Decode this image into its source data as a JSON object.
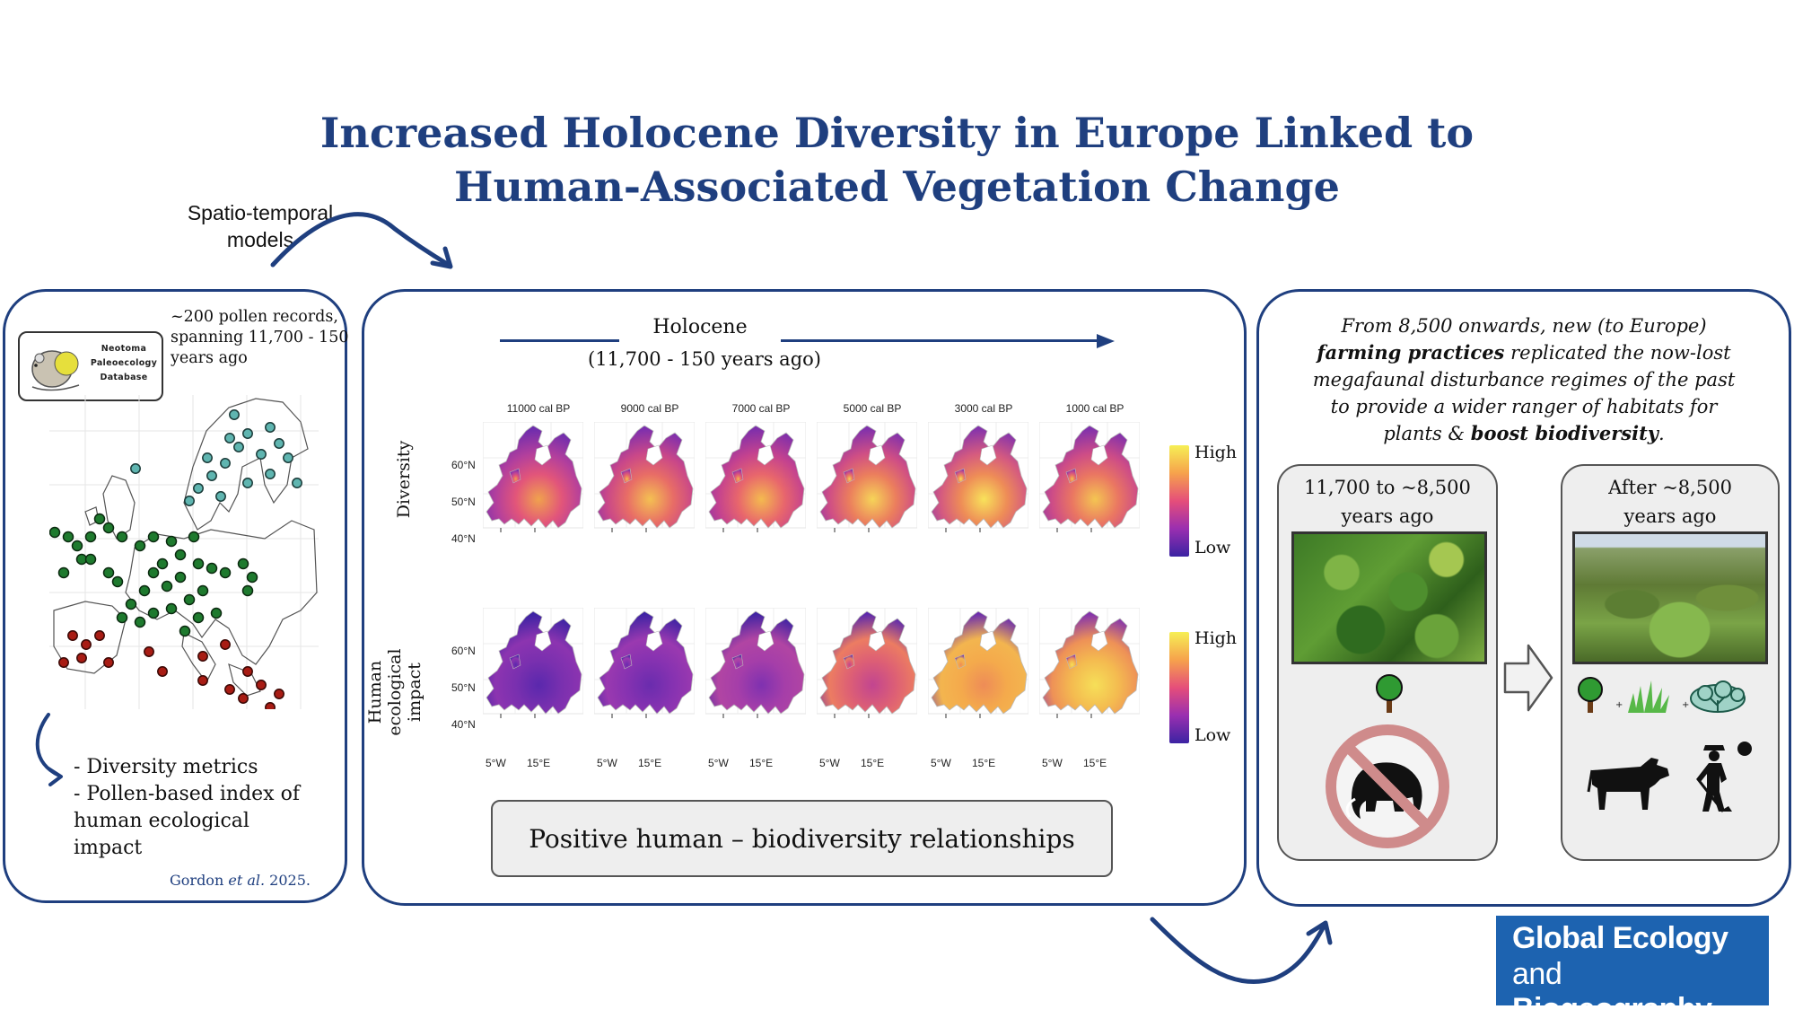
{
  "title_line1": "Increased Holocene Diversity in Europe Linked to",
  "title_line2": "Human-Associated Vegetation Change",
  "arrow_label": "Spatio-temporal\nmodels",
  "left_panel": {
    "records_text": "~200 pollen  records,\nspanning 11,700 - 150\nyears ago",
    "neotoma_line1": "Neotoma",
    "neotoma_line2": "Paleoecology",
    "neotoma_line3": "Database",
    "bullet1": "- Diversity metrics",
    "bullet2": "- Pollen-based index of\nhuman ecological\nimpact",
    "citation_author": "Gordon",
    "citation_etal": "et al.",
    "citation_year": "2025."
  },
  "middle_panel": {
    "holocene_label": "Holocene",
    "holocene_range": "(11,700 - 150 years ago)",
    "time_slices": [
      "11000 cal BP",
      "9000 cal BP",
      "7000 cal BP",
      "5000 cal BP",
      "3000 cal BP",
      "1000 cal BP"
    ],
    "row1_label": "Diversity",
    "row2_label_line1": "Human ecological",
    "row2_label_line2": "impact",
    "lat_ticks": [
      "60°N",
      "50°N",
      "40°N"
    ],
    "lon_ticks": [
      "5°W",
      "15°E"
    ],
    "legend_high": "High",
    "legend_low": "Low",
    "conclusion": "Positive human – biodiversity relationships"
  },
  "right_panel": {
    "text_line1": "From 8,500 onwards, new (to Europe)",
    "text_bold1": "farming practices",
    "text_line2_rest": " replicated the now-lost",
    "text_line3": "megafaunal disturbance regimes of the past",
    "text_line4": "to provide a wider ranger of habitats for",
    "text_line5_start": "plants & ",
    "text_bold2": "boost biodiversity",
    "text_line5_end": ".",
    "before_label": "11,700 to ~8,500\nyears ago",
    "after_label": "After ~8,500\nyears ago"
  },
  "logo": {
    "line1": "Global Ecology",
    "line2_a": "and",
    "line2_b": "Biogeography"
  },
  "colors": {
    "brand_blue": "#1f3f7f",
    "logo_blue": "#1d63b0",
    "site_teal": "#5fb5b0",
    "site_green": "#1e7a2e",
    "site_red": "#a81c14"
  }
}
